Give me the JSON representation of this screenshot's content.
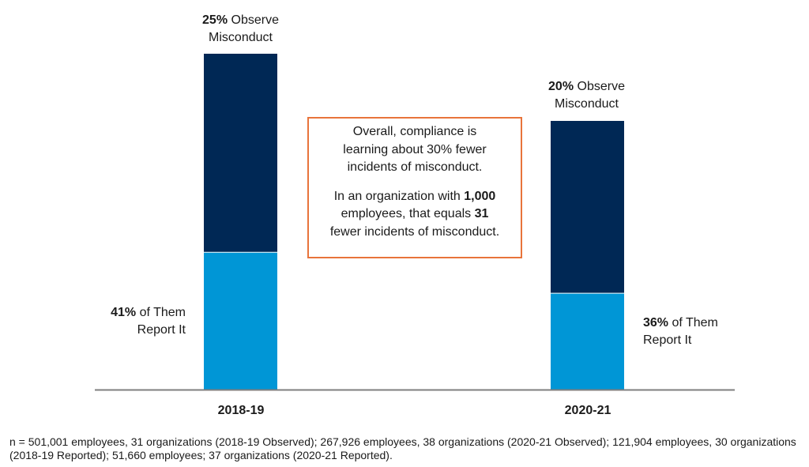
{
  "chart_data": {
    "type": "bar",
    "stacked": true,
    "categories": [
      "2018-19",
      "2020-21"
    ],
    "series": [
      {
        "key": "report",
        "values": [
          41,
          36
        ],
        "color": "#0096d6"
      },
      {
        "key": "observe",
        "values": [
          25,
          20
        ],
        "color": "#002855"
      }
    ],
    "observe_pct": [
      25,
      20
    ],
    "report_pct_of_observers": [
      41,
      36
    ],
    "grid": false,
    "axis_color": "#7f7f7f"
  },
  "labels": {
    "observe": [
      {
        "pct": "25%",
        "text_line1": " Observe",
        "text_line2": "Misconduct"
      },
      {
        "pct": "20%",
        "text_line1": " Observe",
        "text_line2": "Misconduct"
      }
    ],
    "report": [
      {
        "pct": "41%",
        "text_line1": " of Them",
        "text_line2": "Report It"
      },
      {
        "pct": "36%",
        "text_line1": " of Them",
        "text_line2": "Report It"
      }
    ]
  },
  "callout": {
    "line1": "Overall, compliance is",
    "line2": "learning about 30% fewer",
    "line3": "incidents of misconduct.",
    "line4_pre": "In an organization with ",
    "line4_bold": "1,000",
    "line5_pre": "employees, that equals ",
    "line5_bold": "31",
    "line6": "fewer incidents of misconduct.",
    "border_color": "#e8743b"
  },
  "footnote": "n = 501,001 employees, 31 organizations (2018-19 Observed); 267,926 employees, 38 organizations (2020-21 Observed); 121,904 employees, 30 organizations (2018-19 Reported); 51,660 employees; 37 organizations (2020-21 Reported)."
}
